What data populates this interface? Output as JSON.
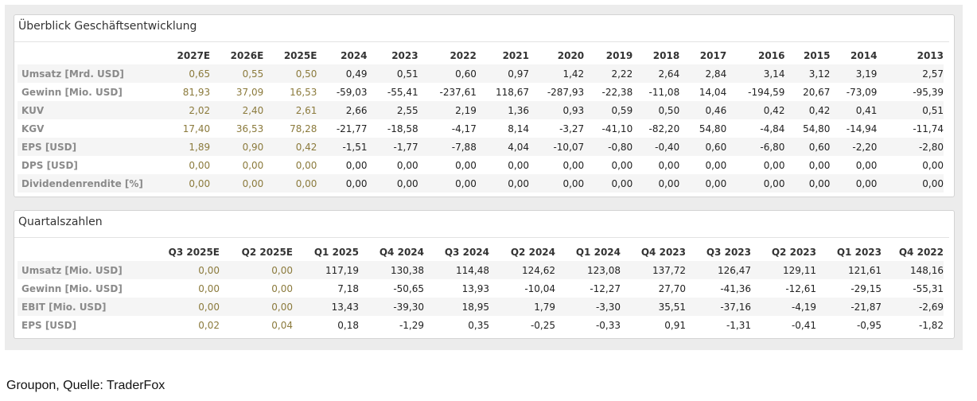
{
  "overview": {
    "title": "Überblick Geschäftsentwicklung",
    "columns": [
      "2027E",
      "2026E",
      "2025E",
      "2024",
      "2023",
      "2022",
      "2021",
      "2020",
      "2019",
      "2018",
      "2017",
      "2016",
      "2015",
      "2014",
      "2013"
    ],
    "rows": [
      {
        "label": "Umsatz [Mrd. USD]",
        "values": [
          "0,65",
          "0,55",
          "0,50",
          "0,49",
          "0,51",
          "0,60",
          "0,97",
          "1,42",
          "2,22",
          "2,64",
          "2,84",
          "3,14",
          "3,12",
          "3,19",
          "2,57"
        ]
      },
      {
        "label": "Gewinn [Mio. USD]",
        "values": [
          "81,93",
          "37,09",
          "16,53",
          "-59,03",
          "-55,41",
          "-237,61",
          "118,67",
          "-287,93",
          "-22,38",
          "-11,08",
          "14,04",
          "-194,59",
          "20,67",
          "-73,09",
          "-95,39"
        ]
      },
      {
        "label": "KUV",
        "values": [
          "2,02",
          "2,40",
          "2,61",
          "2,66",
          "2,55",
          "2,19",
          "1,36",
          "0,93",
          "0,59",
          "0,50",
          "0,46",
          "0,42",
          "0,42",
          "0,41",
          "0,51"
        ]
      },
      {
        "label": "KGV",
        "values": [
          "17,40",
          "36,53",
          "78,28",
          "-21,77",
          "-18,58",
          "-4,17",
          "8,14",
          "-3,27",
          "-41,10",
          "-82,20",
          "54,80",
          "-4,84",
          "54,80",
          "-14,94",
          "-11,74"
        ]
      },
      {
        "label": "EPS [USD]",
        "values": [
          "1,89",
          "0,90",
          "0,42",
          "-1,51",
          "-1,77",
          "-7,88",
          "4,04",
          "-10,07",
          "-0,80",
          "-0,40",
          "0,60",
          "-6,80",
          "0,60",
          "-2,20",
          "-2,80"
        ]
      },
      {
        "label": "DPS [USD]",
        "values": [
          "0,00",
          "0,00",
          "0,00",
          "0,00",
          "0,00",
          "0,00",
          "0,00",
          "0,00",
          "0,00",
          "0,00",
          "0,00",
          "0,00",
          "0,00",
          "0,00",
          "0,00"
        ]
      },
      {
        "label": "Dividendenrendite [%]",
        "values": [
          "0,00",
          "0,00",
          "0,00",
          "0,00",
          "0,00",
          "0,00",
          "0,00",
          "0,00",
          "0,00",
          "0,00",
          "0,00",
          "0,00",
          "0,00",
          "0,00",
          "0,00"
        ]
      }
    ]
  },
  "quarterly": {
    "title": "Quartalszahlen",
    "columns": [
      "Q3 2025E",
      "Q2 2025E",
      "Q1 2025",
      "Q4 2024",
      "Q3 2024",
      "Q2 2024",
      "Q1 2024",
      "Q4 2023",
      "Q3 2023",
      "Q2 2023",
      "Q1 2023",
      "Q4 2022"
    ],
    "rows": [
      {
        "label": "Umsatz [Mio. USD]",
        "values": [
          "0,00",
          "0,00",
          "117,19",
          "130,38",
          "114,48",
          "124,62",
          "123,08",
          "137,72",
          "126,47",
          "129,11",
          "121,61",
          "148,16"
        ]
      },
      {
        "label": "Gewinn [Mio. USD]",
        "values": [
          "0,00",
          "0,00",
          "7,18",
          "-50,65",
          "13,93",
          "-10,04",
          "-12,27",
          "27,70",
          "-41,36",
          "-12,61",
          "-29,15",
          "-55,31"
        ]
      },
      {
        "label": "EBIT [Mio. USD]",
        "values": [
          "0,00",
          "0,00",
          "13,43",
          "-39,30",
          "18,95",
          "1,79",
          "-3,30",
          "35,51",
          "-37,16",
          "-4,19",
          "-21,87",
          "-2,69"
        ]
      },
      {
        "label": "EPS [USD]",
        "values": [
          "0,02",
          "0,04",
          "0,18",
          "-1,29",
          "0,35",
          "-0,25",
          "-0,33",
          "0,91",
          "-1,31",
          "-0,41",
          "-0,95",
          "-1,82"
        ]
      }
    ]
  },
  "caption": "Groupon, Quelle: TraderFox",
  "colors": {
    "estimate_text": "#8b7a3c",
    "label_text": "#8a8a8a",
    "background": "#ececec"
  }
}
